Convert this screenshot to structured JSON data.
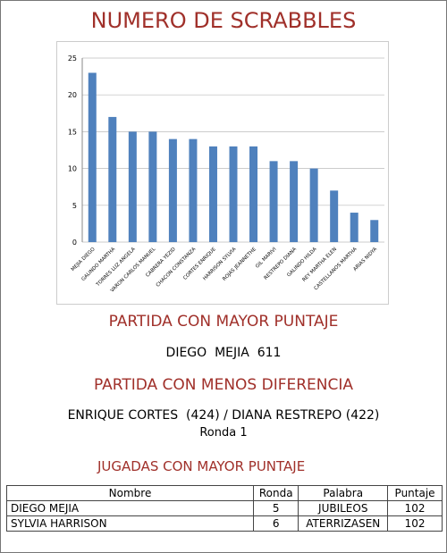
{
  "title": "NUMERO DE SCRABBLES",
  "chart_data": {
    "type": "bar",
    "categories": [
      "MEJIA DIEGO",
      "GALINDO MARTHA",
      "TORRES LUZ ANGELA",
      "VARON CARLOS MANUEL",
      "CABRERA YEZID",
      "CHACON CONSTANZA",
      "CORTES ENRIQUE",
      "HARRISON SYLVIA",
      "ROJAS JEANNETHE",
      "GIL MARIVI",
      "RESTREPO DIANA",
      "GALINDO HILDA",
      "REY MARTHA ELEN",
      "CASTELLANOS MARTHA",
      "ARIAS NIDYA"
    ],
    "values": [
      23,
      17,
      15,
      15,
      14,
      14,
      13,
      13,
      13,
      11,
      11,
      10,
      7,
      4,
      3
    ],
    "color": "#4f81bd",
    "ylim": [
      0,
      25
    ],
    "yticks": [
      0,
      5,
      10,
      15,
      20,
      25
    ],
    "grid": true
  },
  "best_game": {
    "heading": "PARTIDA CON MAYOR PUNTAJE",
    "text": "DIEGO  MEJIA  611"
  },
  "closest_game": {
    "heading": "PARTIDA CON MENOS DIFERENCIA",
    "text": "ENRIQUE CORTES  (424) / DIANA RESTREPO (422)",
    "round": "Ronda 1"
  },
  "best_plays": {
    "heading": "JUGADAS CON MAYOR PUNTAJE",
    "table": {
      "header": [
        "Nombre",
        "Ronda",
        "Palabra",
        "Puntaje"
      ],
      "rows": [
        [
          "DIEGO MEJIA",
          "5",
          "JUBILEOS",
          "102"
        ],
        [
          "SYLVIA HARRISON",
          "6",
          "ATERRIZASEN",
          "102"
        ]
      ]
    }
  }
}
